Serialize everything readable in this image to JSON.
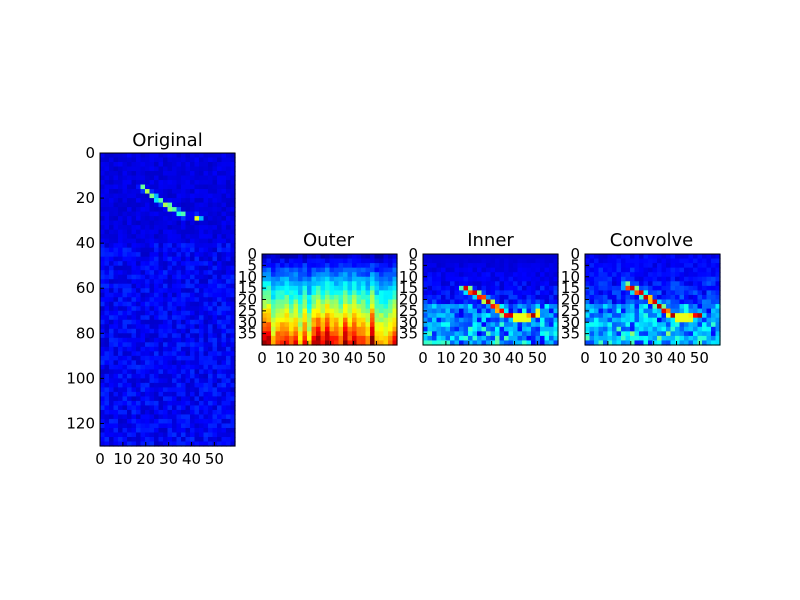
{
  "chart_data": [
    {
      "type": "heatmap",
      "title": "Original",
      "xlim": [
        0,
        59
      ],
      "ylim": [
        0,
        130
      ],
      "y_inverted": true,
      "xticks": [
        0,
        10,
        20,
        30,
        40,
        50
      ],
      "yticks": [
        0,
        20,
        40,
        60,
        80,
        100,
        120
      ],
      "colormap": "jet",
      "features": [
        {
          "kind": "streak",
          "path": [
            [
              18,
              15
            ],
            [
              31,
              25
            ],
            [
              34,
              26
            ],
            [
              37,
              28
            ]
          ],
          "intensity": 0.55
        },
        {
          "kind": "hotspot",
          "x": 43,
          "y": 28.5,
          "intensity": 1.0
        },
        {
          "kind": "hotspot",
          "x": 30.5,
          "y": 24,
          "intensity": 0.9
        }
      ]
    },
    {
      "type": "heatmap",
      "title": "Outer",
      "xlim": [
        0,
        59
      ],
      "ylim": [
        0,
        40
      ],
      "y_inverted": true,
      "xticks": [
        0,
        10,
        20,
        30,
        40,
        50
      ],
      "yticks": [
        0,
        5,
        10,
        15,
        20,
        25,
        30,
        35
      ],
      "colormap": "jet",
      "features": [
        {
          "kind": "vertical_gradient",
          "top_value": 0.05,
          "bottom_value": 0.95,
          "peak_x": 37
        }
      ]
    },
    {
      "type": "heatmap",
      "title": "Inner",
      "xlim": [
        0,
        59
      ],
      "ylim": [
        0,
        40
      ],
      "y_inverted": true,
      "xticks": [
        0,
        10,
        20,
        30,
        40,
        50
      ],
      "yticks": [
        0,
        5,
        10,
        15,
        20,
        25,
        30,
        35
      ],
      "colormap": "jet",
      "features": [
        {
          "kind": "ridge",
          "path": [
            [
              18,
              15
            ],
            [
              24,
              18
            ],
            [
              30,
              22
            ],
            [
              35,
              26
            ],
            [
              40,
              28
            ],
            [
              46,
              28
            ],
            [
              50,
              26
            ]
          ],
          "intensity": 0.95
        }
      ]
    },
    {
      "type": "heatmap",
      "title": "Convolve",
      "xlim": [
        0,
        59
      ],
      "ylim": [
        0,
        40
      ],
      "y_inverted": true,
      "xticks": [
        0,
        10,
        20,
        30,
        40,
        50
      ],
      "yticks": [
        0,
        5,
        10,
        15,
        20,
        25,
        30,
        35
      ],
      "colormap": "jet",
      "features": [
        {
          "kind": "ridge",
          "path": [
            [
              18,
              14
            ],
            [
              24,
              17
            ],
            [
              30,
              21
            ],
            [
              35,
              25
            ],
            [
              40,
              28
            ],
            [
              46,
              28
            ],
            [
              50,
              27
            ]
          ],
          "intensity": 0.95
        }
      ]
    }
  ]
}
